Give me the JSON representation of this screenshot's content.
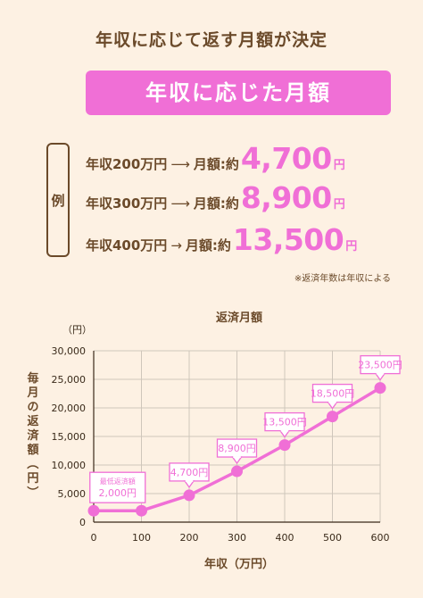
{
  "headline": "年収に応じて返す月額が決定",
  "banner": "年収に応じた月額",
  "example_tag": "例",
  "examples": [
    {
      "income": "年収200万円",
      "arrow": "⟶",
      "label": "月額:約",
      "amount": "4,700",
      "unit": "円"
    },
    {
      "income": "年収300万円",
      "arrow": "⟶",
      "label": "月額:約",
      "amount": "8,900",
      "unit": "円"
    },
    {
      "income": "年収400万円",
      "arrow": "→",
      "label": "月額:約",
      "amount": "13,500",
      "unit": "円"
    }
  ],
  "footnote": "※返済年数は年収による",
  "colors": {
    "accent": "#f06fd6",
    "text": "#6b4a2a",
    "background": "#fdf1e3"
  },
  "chart_data": {
    "type": "line",
    "title": "返済月額",
    "xlabel": "年収（万円）",
    "ylabel": "毎月の返済額（円）",
    "y_unit_label": "（円）",
    "x": [
      0,
      100,
      200,
      300,
      400,
      500,
      600
    ],
    "x_tick_labels": [
      "0",
      "100",
      "200",
      "300",
      "400",
      "500",
      "600"
    ],
    "y_ticks": [
      0,
      5000,
      10000,
      15000,
      20000,
      25000,
      30000
    ],
    "y_tick_labels": [
      "0",
      "5,000",
      "10,000",
      "15,000",
      "20,000",
      "25,000",
      "30,000"
    ],
    "xlim": [
      0,
      600
    ],
    "ylim": [
      0,
      30000
    ],
    "grid": true,
    "series": [
      {
        "x": [
          0,
          100,
          200,
          300,
          400,
          500,
          600
        ],
        "values": [
          2000,
          2000,
          4700,
          8900,
          13500,
          18500,
          23500
        ],
        "color": "#f06fd6"
      }
    ],
    "callouts": [
      {
        "x": 50,
        "title": "最低返済額",
        "text": "2,000円"
      },
      {
        "x": 200,
        "text": "4,700円"
      },
      {
        "x": 300,
        "text": "8,900円"
      },
      {
        "x": 400,
        "text": "13,500円"
      },
      {
        "x": 500,
        "text": "18,500円"
      },
      {
        "x": 600,
        "text": "23,500円"
      }
    ]
  }
}
